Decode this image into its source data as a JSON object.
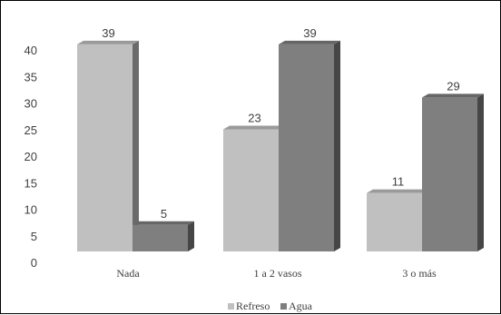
{
  "chart_data": {
    "type": "bar",
    "style": "3d-clustered",
    "categories": [
      "Nada",
      "1 a 2 vasos",
      "3 o más"
    ],
    "series": [
      {
        "name": "Refreso",
        "values": [
          39,
          23,
          11
        ],
        "color": "#c0c0c0"
      },
      {
        "name": "Agua",
        "values": [
          5,
          39,
          29
        ],
        "color": "#7f7f7f"
      }
    ],
    "yticks": [
      0,
      5,
      10,
      15,
      20,
      25,
      30,
      35,
      40
    ],
    "ylim": [
      0,
      40
    ],
    "grid": false,
    "legend": "bottom-center",
    "title": "",
    "xlabel": "",
    "ylabel": ""
  }
}
